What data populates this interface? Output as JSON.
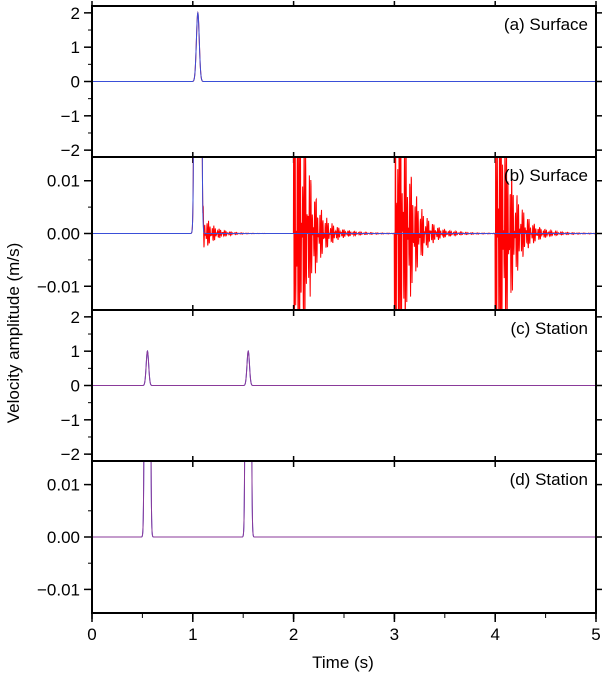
{
  "figure": {
    "ylabel": "Velocity amplitude (m/s)",
    "xlabel": "Time (s)"
  },
  "colors": {
    "trace_red": "#ff0000",
    "trace_blue": "#3a4fd8",
    "trace_purple": "#8a3a9a",
    "axis": "#000000"
  },
  "chart_data": [
    {
      "type": "line",
      "label": "(a) Surface",
      "xlim": [
        0,
        5
      ],
      "ylim": [
        -2.2,
        2.2
      ],
      "yticks": [
        -2,
        -1,
        0,
        1,
        2
      ],
      "ytick_labels": [
        "−2",
        "−1",
        "0",
        "1",
        "2"
      ],
      "yminor_step": 0.5,
      "series": [
        {
          "color": "#ff0000",
          "pulses": [
            {
              "t": 1.05,
              "amp": 2.0,
              "width": 0.04
            }
          ]
        },
        {
          "color": "#3a4fd8",
          "pulses": [
            {
              "t": 1.05,
              "amp": 2.0,
              "width": 0.04
            }
          ]
        }
      ]
    },
    {
      "type": "line",
      "label": "(b) Surface",
      "xlim": [
        0,
        5
      ],
      "ylim": [
        -0.0145,
        0.0145
      ],
      "yticks": [
        -0.01,
        0.0,
        0.01
      ],
      "ytick_labels": [
        "−0.01",
        "0.00",
        "0.01"
      ],
      "yminor_step": 0.005,
      "series": [
        {
          "color": "#ff0000",
          "pulses": [
            {
              "t": 1.05,
              "amp": 2.0,
              "width": 0.04
            }
          ],
          "ringing": [
            1.1,
            2.0,
            3.0,
            4.0
          ]
        },
        {
          "color": "#3a4fd8",
          "pulses": [
            {
              "t": 1.05,
              "amp": 2.0,
              "width": 0.04
            }
          ]
        }
      ]
    },
    {
      "type": "line",
      "label": "(c) Station",
      "xlim": [
        0,
        5
      ],
      "ylim": [
        -2.2,
        2.2
      ],
      "yticks": [
        -2,
        -1,
        0,
        1,
        2
      ],
      "ytick_labels": [
        "−2",
        "−1",
        "0",
        "1",
        "2"
      ],
      "yminor_step": 0.5,
      "series": [
        {
          "color": "#3a4fd8",
          "pulses": [
            {
              "t": 0.55,
              "amp": 1.0,
              "width": 0.035
            },
            {
              "t": 1.55,
              "amp": 1.0,
              "width": 0.035
            }
          ]
        },
        {
          "color": "#8a3a9a",
          "pulses": [
            {
              "t": 0.55,
              "amp": 1.0,
              "width": 0.035
            },
            {
              "t": 1.55,
              "amp": 1.0,
              "width": 0.035
            }
          ]
        }
      ]
    },
    {
      "type": "line",
      "label": "(d) Station",
      "xlim": [
        0,
        5
      ],
      "ylim": [
        -0.0145,
        0.0145
      ],
      "yticks": [
        -0.01,
        0.0,
        0.01
      ],
      "ytick_labels": [
        "−0.01",
        "0.00",
        "0.01"
      ],
      "yminor_step": 0.005,
      "series": [
        {
          "color": "#3a4fd8",
          "pulses": [
            {
              "t": 0.55,
              "amp": 1.0,
              "width": 0.035
            },
            {
              "t": 1.55,
              "amp": 1.0,
              "width": 0.035
            }
          ]
        },
        {
          "color": "#8a3a9a",
          "pulses": [
            {
              "t": 0.55,
              "amp": 1.0,
              "width": 0.035
            },
            {
              "t": 1.55,
              "amp": 1.0,
              "width": 0.035
            }
          ]
        }
      ]
    }
  ],
  "xaxis": {
    "ticks": [
      0,
      1,
      2,
      3,
      4,
      5
    ],
    "tick_labels": [
      "0",
      "1",
      "2",
      "3",
      "4",
      "5"
    ],
    "minor_step": 0.5
  }
}
